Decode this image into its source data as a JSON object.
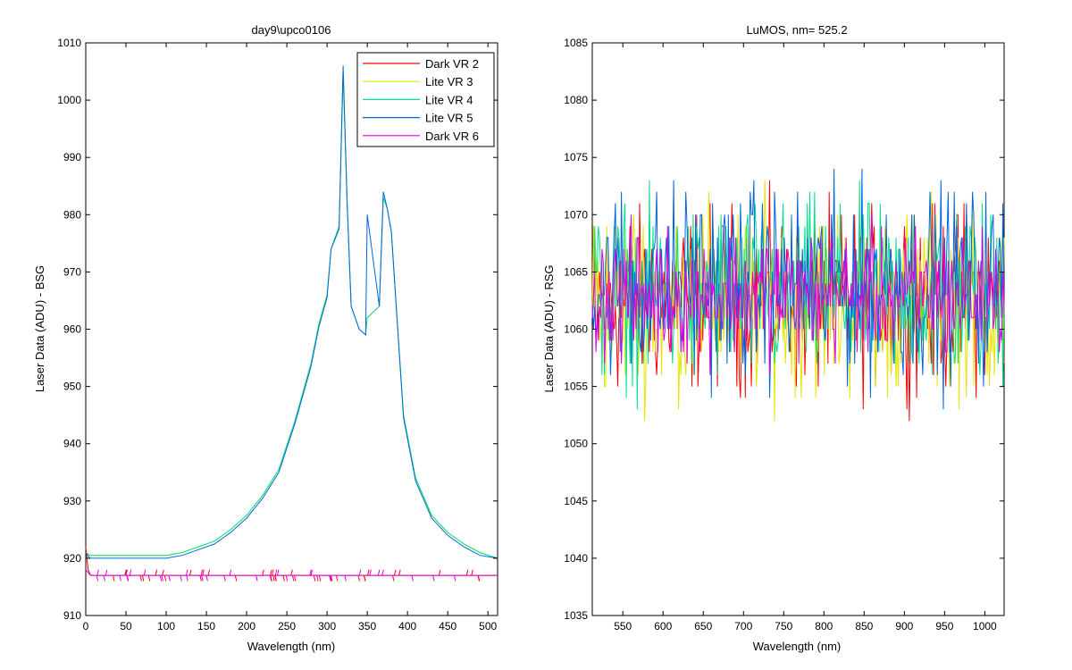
{
  "chart_data": [
    {
      "type": "line",
      "title": "day9\\upco0106",
      "xlabel": "Wavelength (nm)",
      "ylabel": "Laser Data (ADU) - BSG",
      "xlim": [
        0,
        512
      ],
      "ylim": [
        910,
        1010
      ],
      "xticks": [
        0,
        50,
        100,
        150,
        200,
        250,
        300,
        350,
        400,
        450,
        500
      ],
      "yticks": [
        910,
        920,
        930,
        940,
        950,
        960,
        970,
        980,
        990,
        1000,
        1010
      ],
      "legend_position": "top-right",
      "series": [
        {
          "name": "Dark VR 2",
          "color": "#ff0000",
          "x": [
            0,
            3,
            6,
            10,
            20,
            40,
            60,
            80,
            100,
            130,
            160,
            200,
            240,
            280,
            320,
            360,
            400,
            440,
            480,
            512
          ],
          "y": [
            922,
            918,
            917,
            917,
            917,
            917,
            917,
            917,
            917,
            917,
            917,
            917,
            917,
            917,
            917,
            917,
            917,
            917,
            917,
            917
          ]
        },
        {
          "name": "Lite VR 3",
          "color": "#e5e500",
          "x": [
            0,
            5,
            20,
            60,
            100,
            120,
            140,
            160,
            180,
            200,
            220,
            240,
            260,
            280,
            290,
            300,
            305,
            315,
            320,
            325,
            330,
            340,
            348,
            350,
            365,
            370,
            375,
            380,
            385,
            395,
            410,
            430,
            450,
            470,
            490,
            512
          ],
          "y": [
            921,
            920.5,
            920.5,
            920.5,
            920.5,
            921,
            922,
            923,
            925,
            927.5,
            931,
            935.5,
            944,
            954,
            961,
            966,
            974,
            978,
            1004,
            982,
            964,
            960,
            959,
            962,
            964,
            983,
            981,
            977,
            966,
            945,
            934,
            927.5,
            924.5,
            922.5,
            921,
            920
          ]
        },
        {
          "name": "Lite VR 4",
          "color": "#00e08a",
          "x": [
            0,
            5,
            20,
            60,
            100,
            120,
            140,
            160,
            180,
            200,
            220,
            240,
            260,
            280,
            290,
            300,
            305,
            315,
            320,
            325,
            330,
            340,
            348,
            350,
            365,
            370,
            375,
            380,
            385,
            395,
            410,
            430,
            450,
            470,
            490,
            512
          ],
          "y": [
            921,
            920.5,
            920.5,
            920.5,
            920.5,
            921,
            922,
            923,
            925,
            927.5,
            931,
            935.5,
            944,
            954,
            961,
            966,
            974,
            978,
            1005,
            982,
            964,
            960,
            959,
            962,
            964,
            983,
            981,
            977,
            966,
            945,
            934,
            927.5,
            924.5,
            922.5,
            921,
            920
          ]
        },
        {
          "name": "Lite VR 5",
          "color": "#0066dd",
          "x": [
            0,
            5,
            20,
            60,
            100,
            120,
            140,
            160,
            180,
            200,
            220,
            240,
            260,
            280,
            290,
            300,
            305,
            315,
            320,
            325,
            330,
            340,
            348,
            350,
            365,
            370,
            375,
            380,
            385,
            395,
            410,
            430,
            450,
            470,
            490,
            512
          ],
          "y": [
            921,
            920,
            920,
            920,
            920,
            920.5,
            921.5,
            922.5,
            924.5,
            927,
            930.5,
            935,
            943.5,
            953.5,
            960.5,
            965.5,
            974,
            977.5,
            1006,
            982,
            964,
            960,
            959,
            980,
            964,
            984,
            981,
            977,
            966,
            944.5,
            933.5,
            927,
            924,
            922,
            920.5,
            920
          ]
        },
        {
          "name": "Dark VR 6",
          "color": "#e000e0",
          "x": [
            0,
            3,
            6,
            10,
            20,
            40,
            60,
            80,
            100,
            130,
            160,
            200,
            240,
            280,
            320,
            360,
            400,
            440,
            480,
            512
          ],
          "y": [
            918,
            917.5,
            917,
            917,
            917,
            917,
            917,
            917,
            917,
            917,
            917,
            917,
            917,
            917,
            917,
            917,
            917,
            917,
            917,
            917
          ]
        }
      ]
    },
    {
      "type": "line",
      "title": "LuMOS, nm= 525.2",
      "xlabel": "Wavelength (nm)",
      "ylabel": "Laser Data (ADU) - RSG",
      "xlim": [
        512,
        1024
      ],
      "ylim": [
        1035,
        1085
      ],
      "xticks": [
        550,
        600,
        650,
        700,
        750,
        800,
        850,
        900,
        950,
        1000
      ],
      "yticks": [
        1035,
        1040,
        1045,
        1050,
        1055,
        1060,
        1065,
        1070,
        1075,
        1080,
        1085
      ],
      "series": [
        {
          "color": "#ff0000",
          "mean": 1062.5,
          "spread": 7,
          "points": 340
        },
        {
          "color": "#e5e500",
          "mean": 1062.5,
          "spread": 7.5,
          "points": 340
        },
        {
          "color": "#00e08a",
          "mean": 1063,
          "spread": 7,
          "points": 340
        },
        {
          "color": "#0066dd",
          "mean": 1064,
          "spread": 7.5,
          "points": 340
        },
        {
          "color": "#e000e0",
          "mean": 1063,
          "spread": 5,
          "points": 340
        }
      ]
    }
  ]
}
